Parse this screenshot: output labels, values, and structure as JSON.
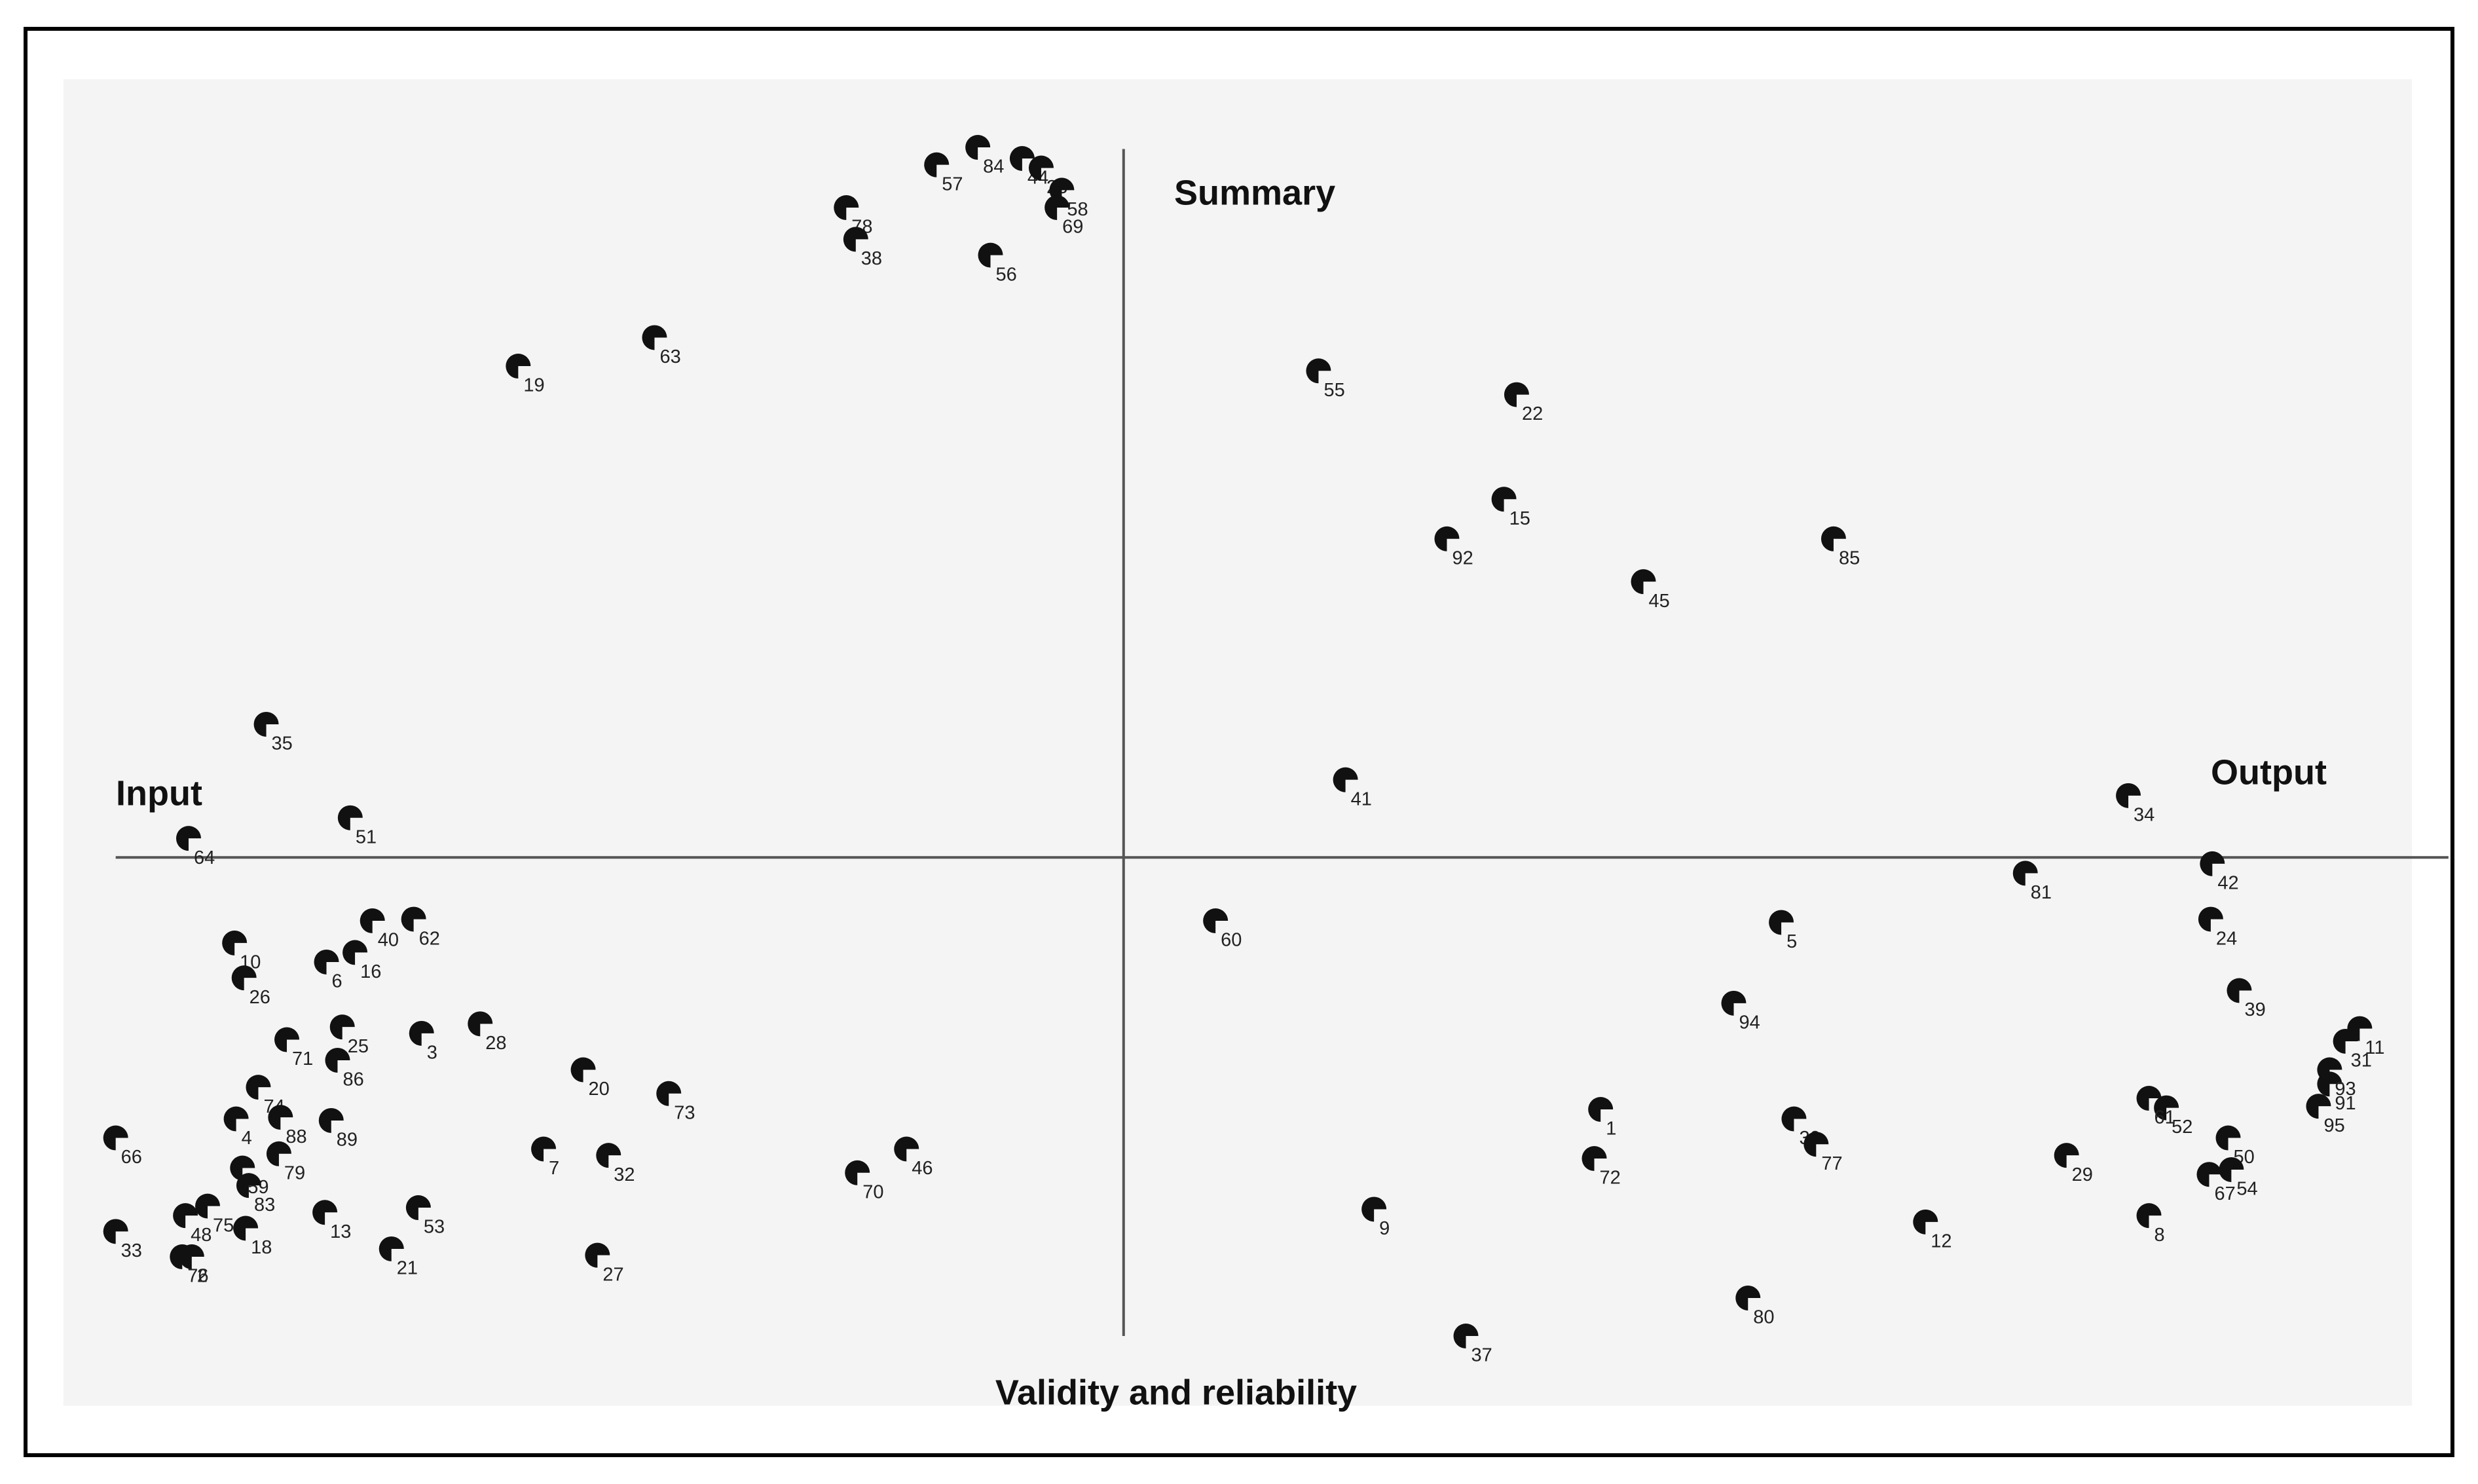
{
  "chart_data": {
    "type": "scatter",
    "annotations": {
      "left": "Input",
      "right": "Output",
      "top": "Summary",
      "bottom": "Validity and reliability"
    },
    "labels": [
      "57",
      "84",
      "44",
      "23",
      "58",
      "69",
      "78",
      "38",
      "56",
      "63",
      "19",
      "55",
      "22",
      "15",
      "92",
      "85",
      "45",
      "35",
      "41",
      "34",
      "51",
      "64",
      "42",
      "81",
      "60",
      "5",
      "24",
      "10",
      "40",
      "62",
      "6",
      "16",
      "26",
      "39",
      "94",
      "71",
      "25",
      "86",
      "3",
      "28",
      "20",
      "73",
      "74",
      "4",
      "88",
      "89",
      "66",
      "79",
      "59",
      "83",
      "7",
      "32",
      "46",
      "70",
      "1",
      "72",
      "30",
      "77",
      "29",
      "12",
      "80",
      "37",
      "9",
      "8",
      "50",
      "67",
      "54",
      "52",
      "61",
      "95",
      "91",
      "93",
      "31",
      "11",
      "33",
      "48",
      "75",
      "18",
      "13",
      "53",
      "21",
      "27",
      "76",
      "2"
    ],
    "x": [
      -1.18,
      -0.92,
      -0.64,
      -0.52,
      -0.39,
      -0.42,
      -1.75,
      -1.69,
      -0.84,
      -2.96,
      -3.82,
      1.23,
      2.48,
      2.4,
      2.04,
      4.48,
      3.28,
      -5.41,
      1.4,
      6.34,
      -4.88,
      -5.9,
      6.87,
      5.69,
      0.58,
      4.15,
      6.86,
      -5.61,
      -4.74,
      -4.48,
      -5.03,
      -4.85,
      -5.55,
      7.04,
      3.85,
      -5.28,
      -4.93,
      -4.96,
      -4.43,
      -4.06,
      -3.41,
      -2.87,
      -5.46,
      -5.6,
      -5.32,
      -5.0,
      -6.36,
      -5.33,
      -5.56,
      -5.52,
      -3.66,
      -3.25,
      -1.37,
      -1.68,
      3.01,
      2.97,
      4.23,
      4.37,
      5.95,
      5.06,
      3.94,
      2.16,
      1.58,
      6.47,
      6.97,
      6.85,
      6.99,
      6.58,
      6.47,
      7.54,
      7.61,
      7.61,
      7.71,
      7.8,
      -6.36,
      -5.92,
      -5.78,
      -5.54,
      -5.04,
      -4.45,
      -4.62,
      -3.32,
      -5.94,
      -5.88
    ],
    "y": [
      4.37,
      4.48,
      4.41,
      4.35,
      4.21,
      4.1,
      4.1,
      3.9,
      3.8,
      3.28,
      3.1,
      3.07,
      2.92,
      2.26,
      2.01,
      2.01,
      1.74,
      0.84,
      0.49,
      0.39,
      0.25,
      0.12,
      -0.04,
      -0.1,
      -0.4,
      -0.41,
      -0.39,
      -0.54,
      -0.4,
      -0.39,
      -0.66,
      -0.6,
      -0.76,
      -0.84,
      -0.92,
      -1.15,
      -1.07,
      -1.28,
      -1.11,
      -1.05,
      -1.34,
      -1.49,
      -1.45,
      -1.65,
      -1.64,
      -1.66,
      -1.77,
      -1.87,
      -1.96,
      -2.07,
      -1.84,
      -1.88,
      -1.84,
      -1.99,
      -1.59,
      -1.9,
      -1.65,
      -1.81,
      -1.88,
      -2.3,
      -2.78,
      -3.02,
      -2.22,
      -2.26,
      -1.77,
      -2.0,
      -1.97,
      -1.58,
      -1.52,
      -1.57,
      -1.43,
      -1.34,
      -1.16,
      -1.08,
      -2.36,
      -2.26,
      -2.2,
      -2.34,
      -2.24,
      -2.21,
      -2.47,
      -2.51,
      -2.52,
      -2.52
    ],
    "xlim": [
      -6.69,
      8.13
    ],
    "ylim": [
      -3.46,
      4.91
    ],
    "color": "#111111",
    "background": "#f4f4f4"
  }
}
